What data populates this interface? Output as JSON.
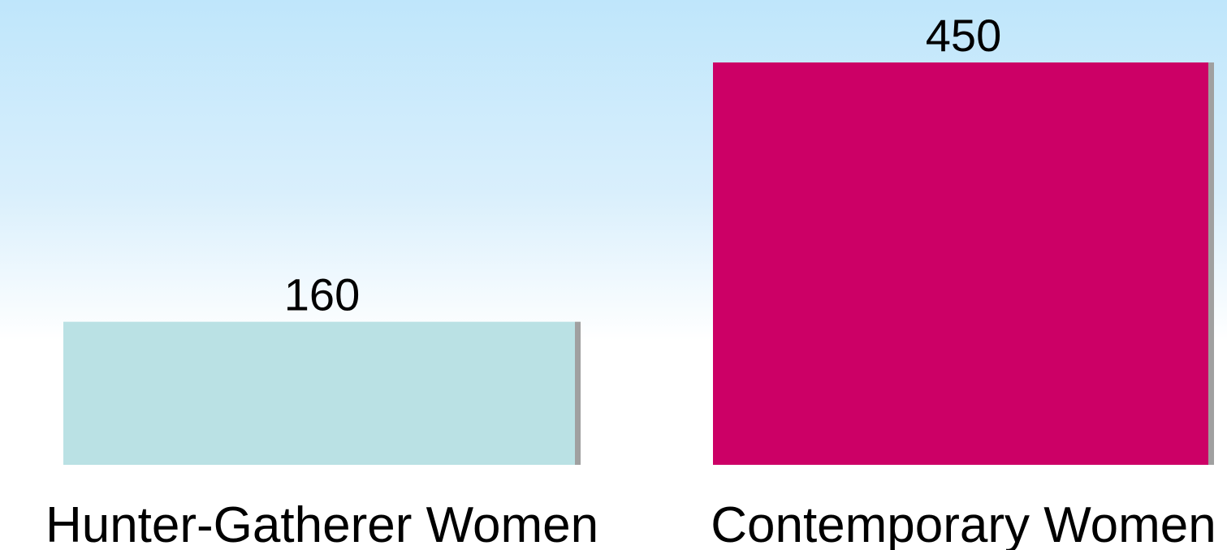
{
  "chart_data": {
    "type": "bar",
    "categories": [
      "Hunter-Gatherer Women",
      "Contemporary Women"
    ],
    "values": [
      160,
      450
    ],
    "data_labels": [
      "160",
      "450"
    ],
    "colors": [
      "#bae1e4",
      "#cc0066"
    ],
    "shadow_color": "#a0a0a0",
    "ylim": [
      0,
      450
    ],
    "grid": false,
    "legend": "none"
  }
}
